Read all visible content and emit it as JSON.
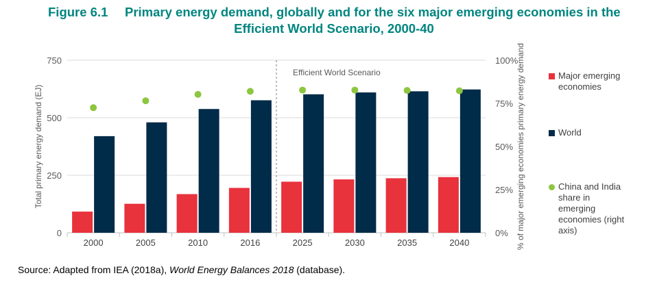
{
  "figure": {
    "number": "Figure 6.1",
    "title_line1": "Primary energy demand, globally and for the six major emerging economies in the",
    "title_line2": "Efficient World Scenario, 2000-40"
  },
  "chart_data": {
    "type": "bar",
    "categories": [
      "2000",
      "2005",
      "2010",
      "2016",
      "2025",
      "2030",
      "2035",
      "2040"
    ],
    "series": [
      {
        "name": "Major emerging economies",
        "type": "bar",
        "axis": "left",
        "color": "#e8323c",
        "values": [
          92,
          126,
          168,
          195,
          222,
          232,
          237,
          242
        ]
      },
      {
        "name": "World",
        "type": "bar",
        "axis": "left",
        "color": "#002b49",
        "values": [
          420,
          480,
          538,
          576,
          602,
          610,
          615,
          623
        ]
      },
      {
        "name": "China and India share in emerging economies (right axis)",
        "type": "scatter",
        "axis": "right",
        "color": "#8dc63f",
        "values": [
          72.5,
          76.5,
          80.2,
          82.0,
          82.7,
          82.7,
          82.5,
          82.3
        ]
      }
    ],
    "ylabel": "Total primary energy demand (EJ)",
    "ylabel_right": "% of major emerging economies primary energy demand",
    "ylim": [
      0,
      750
    ],
    "yticks": [
      "0",
      "250",
      "500",
      "750"
    ],
    "ylim_right": [
      0,
      100
    ],
    "yticks_right": [
      "0%",
      "25%",
      "50%",
      "75%",
      "100%"
    ],
    "annotation": "Efficient World Scenario",
    "annotation_after_category": "2016",
    "gridlines": true,
    "legend_position": "right"
  },
  "legend": [
    {
      "label": "Major emerging economies",
      "color": "#e8323c",
      "shape": "square"
    },
    {
      "label": "World",
      "color": "#002b49",
      "shape": "square"
    },
    {
      "label": "China and India share in emerging economies (right axis)",
      "color": "#8dc63f",
      "shape": "circle"
    }
  ],
  "source": {
    "prefix": "Source: Adapted from IEA (2018a), ",
    "italic": "World Energy Balances 2018",
    "suffix": " (database)."
  }
}
